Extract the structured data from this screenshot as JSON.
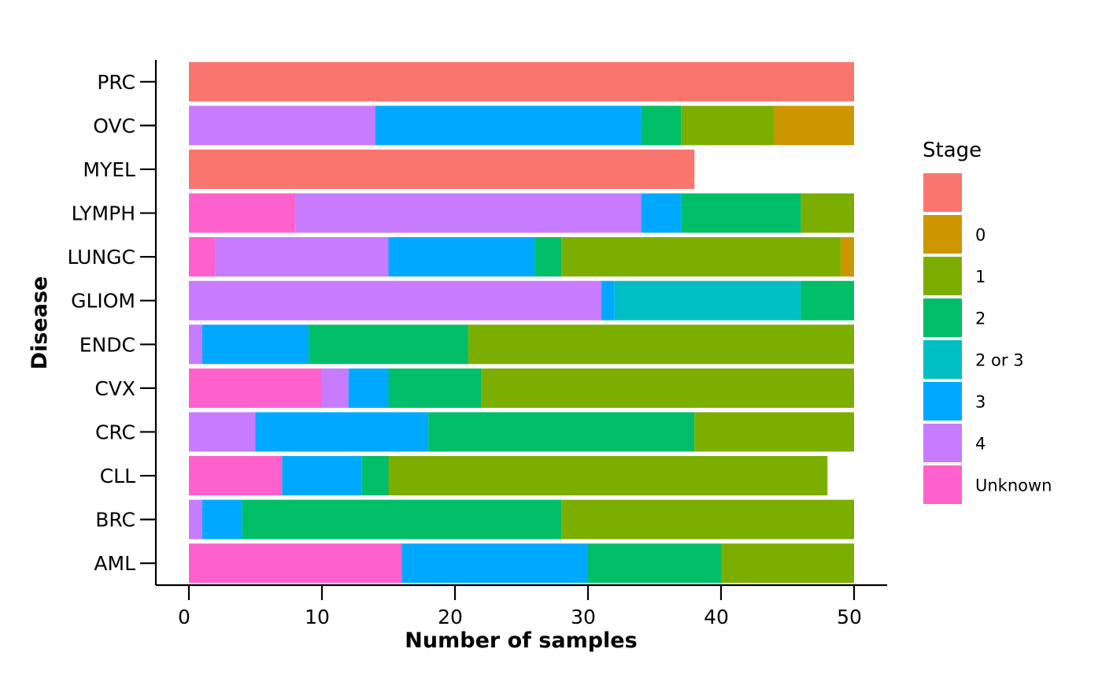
{
  "chart_data": {
    "type": "bar",
    "orientation": "horizontal",
    "stacked": true,
    "xlabel": "Number of samples",
    "ylabel": "Disease",
    "xlim": [
      -2.5,
      52.5
    ],
    "x_ticks": [
      "0",
      "10",
      "20",
      "30",
      "40",
      "50"
    ],
    "categories": [
      "PRC",
      "OVC",
      "MYEL",
      "LYMPH",
      "LUNGC",
      "GLIOM",
      "ENDC",
      "CVX",
      "CRC",
      "CLL",
      "BRC",
      "AML"
    ],
    "legend": {
      "title": "Stage",
      "placement": "right",
      "entries": [
        {
          "label": "",
          "color": "#F8766D"
        },
        {
          "label": "0",
          "color": "#CD9600"
        },
        {
          "label": "1",
          "color": "#7CAE00"
        },
        {
          "label": "2",
          "color": "#00BE67"
        },
        {
          "label": "2 or 3",
          "color": "#00BFC4"
        },
        {
          "label": "3",
          "color": "#00A9FF"
        },
        {
          "label": "4",
          "color": "#C77CFF"
        },
        {
          "label": "Unknown",
          "color": "#FF61CC"
        }
      ]
    },
    "stack_order": [
      "Unknown",
      "4",
      "3",
      "2 or 3",
      "2",
      "1",
      "0",
      ""
    ],
    "series": [
      {
        "name": "Unknown",
        "values": [
          0,
          0,
          0,
          8,
          2,
          0,
          0,
          10,
          0,
          7,
          0,
          16
        ]
      },
      {
        "name": "4",
        "values": [
          0,
          14,
          0,
          26,
          13,
          31,
          1,
          2,
          5,
          0,
          1,
          0
        ]
      },
      {
        "name": "3",
        "values": [
          0,
          20,
          0,
          3,
          11,
          1,
          8,
          3,
          13,
          6,
          3,
          14
        ]
      },
      {
        "name": "2 or 3",
        "values": [
          0,
          0,
          0,
          0,
          0,
          14,
          0,
          0,
          0,
          0,
          0,
          0
        ]
      },
      {
        "name": "2",
        "values": [
          0,
          3,
          0,
          9,
          2,
          4,
          12,
          7,
          20,
          2,
          24,
          10
        ]
      },
      {
        "name": "1",
        "values": [
          0,
          7,
          0,
          4,
          21,
          0,
          29,
          28,
          12,
          33,
          22,
          10
        ]
      },
      {
        "name": "0",
        "values": [
          0,
          6,
          0,
          0,
          1,
          0,
          0,
          0,
          0,
          0,
          0,
          0
        ]
      },
      {
        "name": "",
        "values": [
          50,
          0,
          38,
          0,
          0,
          0,
          0,
          0,
          0,
          0,
          0,
          0
        ]
      }
    ]
  }
}
